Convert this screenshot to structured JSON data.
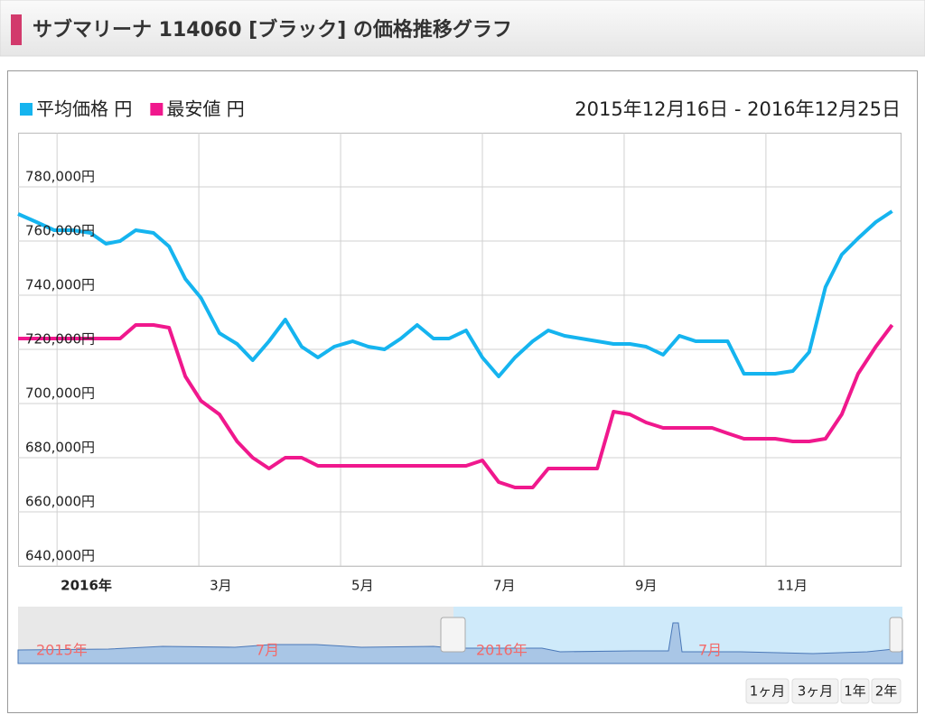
{
  "header": {
    "title": "サブマリーナ 114060 [ブラック] の価格推移グラフ"
  },
  "chart_data": {
    "type": "line",
    "date_range": "2015年12月16日 - 2016年12月25日",
    "x": [
      0.45,
      0.71,
      0.96,
      1.22,
      1.47,
      1.69,
      1.89,
      2.11,
      2.36,
      2.58,
      2.81,
      3.03,
      3.29,
      3.54,
      3.76,
      3.99,
      4.22,
      4.45,
      4.68,
      4.91,
      5.17,
      5.39,
      5.62,
      5.85,
      6.08,
      6.31,
      6.53,
      6.77,
      7.0,
      7.23,
      7.46,
      7.71,
      7.93,
      8.16,
      8.39,
      8.62,
      8.85,
      9.08,
      9.31,
      9.55,
      9.78,
      10.01,
      10.24,
      10.46,
      10.69,
      10.9,
      11.13,
      11.38,
      11.61,
      11.84,
      12.07,
      12.3,
      12.55,
      12.78
    ],
    "series": [
      {
        "name": "平均価格 円",
        "color": "#15b4ef",
        "values": [
          770000,
          767000,
          764000,
          764000,
          763000,
          759000,
          760000,
          764000,
          763000,
          758000,
          746000,
          739000,
          726000,
          722000,
          716000,
          723000,
          731000,
          721000,
          717000,
          721000,
          723000,
          721000,
          720000,
          724000,
          729000,
          724000,
          724000,
          727000,
          717000,
          710000,
          717000,
          723000,
          727000,
          725000,
          724000,
          723000,
          722000,
          722000,
          721000,
          718000,
          725000,
          723000,
          723000,
          723000,
          711000,
          711000,
          711000,
          712000,
          719000,
          743000,
          755000,
          761000,
          767000,
          771000
        ]
      },
      {
        "name": "最安値 円",
        "color": "#f0188d",
        "values": [
          724000,
          724000,
          724000,
          724000,
          724000,
          724000,
          724000,
          729000,
          729000,
          728000,
          710000,
          701000,
          696000,
          686000,
          680000,
          676000,
          680000,
          680000,
          677000,
          677000,
          677000,
          677000,
          677000,
          677000,
          677000,
          677000,
          677000,
          677000,
          679000,
          671000,
          669000,
          669000,
          676000,
          676000,
          676000,
          676000,
          697000,
          696000,
          693000,
          691000,
          691000,
          691000,
          691000,
          689000,
          687000,
          687000,
          687000,
          686000,
          686000,
          687000,
          696000,
          711000,
          721000,
          729000
        ]
      }
    ],
    "xlim": [
      0.45,
      12.9
    ],
    "xticks": [
      {
        "value": 1,
        "label": "2016年"
      },
      {
        "value": 3,
        "label": "3月"
      },
      {
        "value": 5,
        "label": "5月"
      },
      {
        "value": 7,
        "label": "7月"
      },
      {
        "value": 9,
        "label": "9月"
      },
      {
        "value": 11,
        "label": "11月"
      }
    ],
    "ylim": [
      640000,
      800000
    ],
    "yticks": [
      {
        "value": 640000,
        "label": "640,000円"
      },
      {
        "value": 660000,
        "label": "660,000円"
      },
      {
        "value": 680000,
        "label": "680,000円"
      },
      {
        "value": 700000,
        "label": "700,000円"
      },
      {
        "value": 720000,
        "label": "720,000円"
      },
      {
        "value": 740000,
        "label": "740,000円"
      },
      {
        "value": 760000,
        "label": "760,000円"
      },
      {
        "value": 780000,
        "label": "780,000円"
      }
    ],
    "grid": true
  },
  "navigator": {
    "labels": [
      "2015年",
      "7月",
      "2016年",
      "7月"
    ]
  },
  "range_buttons": [
    "1ヶ月",
    "3ヶ月",
    "1年",
    "2年"
  ]
}
